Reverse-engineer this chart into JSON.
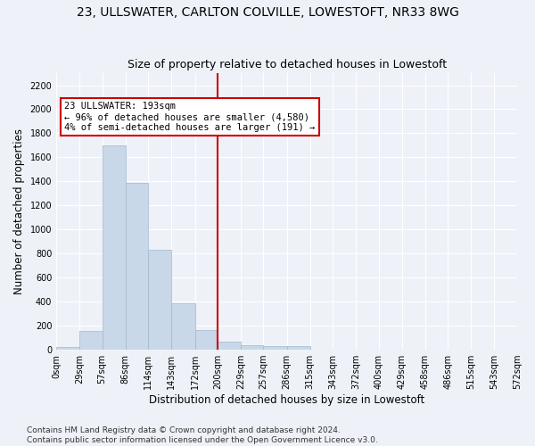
{
  "title": "23, ULLSWATER, CARLTON COLVILLE, LOWESTOFT, NR33 8WG",
  "subtitle": "Size of property relative to detached houses in Lowestoft",
  "xlabel": "Distribution of detached houses by size in Lowestoft",
  "ylabel": "Number of detached properties",
  "bar_edges": [
    0,
    29,
    57,
    86,
    114,
    143,
    172,
    200,
    229,
    257,
    286,
    315,
    343,
    372,
    400,
    429,
    458,
    486,
    515,
    543,
    572
  ],
  "bar_heights": [
    20,
    155,
    1700,
    1390,
    835,
    385,
    165,
    70,
    40,
    30,
    30,
    0,
    0,
    0,
    0,
    0,
    0,
    0,
    0,
    0
  ],
  "bar_color": "#c8d8e8",
  "bar_edgecolor": "#a0b8cc",
  "vline_x": 200,
  "vline_color": "#cc0000",
  "annotation_text": "23 ULLSWATER: 193sqm\n← 96% of detached houses are smaller (4,580)\n4% of semi-detached houses are larger (191) →",
  "annotation_box_edgecolor": "#cc0000",
  "annotation_box_facecolor": "#ffffff",
  "ylim": [
    0,
    2300
  ],
  "yticks": [
    0,
    200,
    400,
    600,
    800,
    1000,
    1200,
    1400,
    1600,
    1800,
    2000,
    2200
  ],
  "tick_labels": [
    "0sqm",
    "29sqm",
    "57sqm",
    "86sqm",
    "114sqm",
    "143sqm",
    "172sqm",
    "200sqm",
    "229sqm",
    "257sqm",
    "286sqm",
    "315sqm",
    "343sqm",
    "372sqm",
    "400sqm",
    "429sqm",
    "458sqm",
    "486sqm",
    "515sqm",
    "543sqm",
    "572sqm"
  ],
  "footnote": "Contains HM Land Registry data © Crown copyright and database right 2024.\nContains public sector information licensed under the Open Government Licence v3.0.",
  "background_color": "#eef2f8",
  "grid_color": "#ffffff",
  "title_fontsize": 10,
  "subtitle_fontsize": 9,
  "axis_fontsize": 8.5,
  "tick_fontsize": 7,
  "footnote_fontsize": 6.5
}
